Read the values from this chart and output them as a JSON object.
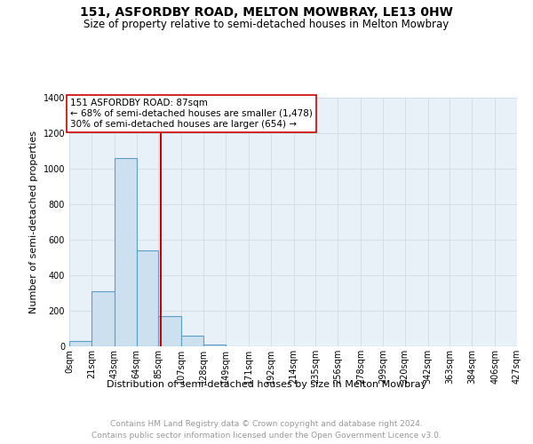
{
  "title": "151, ASFORDBY ROAD, MELTON MOWBRAY, LE13 0HW",
  "subtitle": "Size of property relative to semi-detached houses in Melton Mowbray",
  "xlabel": "Distribution of semi-detached houses by size in Melton Mowbray",
  "ylabel": "Number of semi-detached properties",
  "bin_labels": [
    "0sqm",
    "21sqm",
    "43sqm",
    "64sqm",
    "85sqm",
    "107sqm",
    "128sqm",
    "149sqm",
    "171sqm",
    "192sqm",
    "214sqm",
    "235sqm",
    "256sqm",
    "278sqm",
    "299sqm",
    "320sqm",
    "342sqm",
    "363sqm",
    "384sqm",
    "406sqm",
    "427sqm"
  ],
  "bin_edges": [
    0,
    21,
    43,
    64,
    85,
    107,
    128,
    149,
    171,
    192,
    214,
    235,
    256,
    278,
    299,
    320,
    342,
    363,
    384,
    406,
    427
  ],
  "bar_heights": [
    30,
    310,
    1060,
    540,
    170,
    60,
    10,
    0,
    0,
    0,
    0,
    0,
    0,
    0,
    0,
    0,
    0,
    0,
    0,
    0
  ],
  "bar_color": "#cce0f0",
  "bar_edge_color": "#5a9fc8",
  "property_size": 87,
  "property_label": "151 ASFORDBY ROAD: 87sqm",
  "annotation_line1": "← 68% of semi-detached houses are smaller (1,478)",
  "annotation_line2": "30% of semi-detached houses are larger (654) →",
  "vline_color": "#cc0000",
  "annotation_box_color": "#ffffff",
  "annotation_box_edge": "#cc0000",
  "ylim": [
    0,
    1400
  ],
  "yticks": [
    0,
    200,
    400,
    600,
    800,
    1000,
    1200,
    1400
  ],
  "grid_color": "#d0dde8",
  "bg_color": "#e8f0f8",
  "footer1": "Contains HM Land Registry data © Crown copyright and database right 2024.",
  "footer2": "Contains public sector information licensed under the Open Government Licence v3.0.",
  "title_fontsize": 10,
  "subtitle_fontsize": 8.5,
  "xlabel_fontsize": 8,
  "ylabel_fontsize": 8,
  "tick_fontsize": 7,
  "footer_fontsize": 6.5,
  "ann_fontsize": 7.5
}
